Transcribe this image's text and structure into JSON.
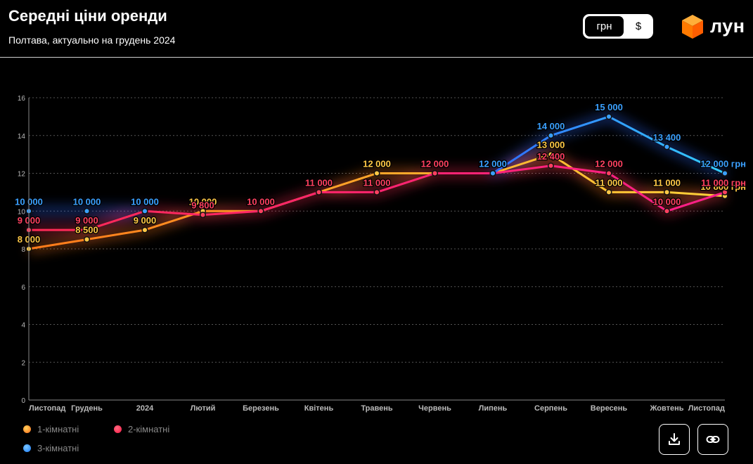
{
  "header": {
    "title": "Середні ціни оренди",
    "subtitle": "Полтава, актуально на грудень 2024"
  },
  "currency_toggle": {
    "active": "грн",
    "inactive": "$"
  },
  "logo": {
    "icon": "cube-logo-icon",
    "text": "лун"
  },
  "colors": {
    "one_room": "#ff8c2a",
    "two_room": "#ff2a55",
    "three_room": "#3a9fff",
    "grid": "#555555",
    "axis_text": "#bbbbbb"
  },
  "legend": [
    {
      "label": "1-кімнатні",
      "color": "#ff8c2a"
    },
    {
      "label": "2-кімнатні",
      "color": "#ff2a55"
    },
    {
      "label": "3-кімнатні",
      "color": "#3a9fff"
    }
  ],
  "actions": {
    "download": "download-icon",
    "link": "link-icon"
  },
  "chart_data": {
    "type": "line",
    "categories": [
      "Листопад",
      "Грудень",
      "2024",
      "Лютий",
      "Березень",
      "Квітень",
      "Травень",
      "Червень",
      "Липень",
      "Серпень",
      "Вересень",
      "Жовтень",
      "Листопад"
    ],
    "yticks": [
      "0",
      "2",
      "4",
      "6",
      "8",
      "10",
      "12",
      "14",
      "16"
    ],
    "ylim": [
      0,
      16
    ],
    "grid": true,
    "legend_position": "bottom-left",
    "unit_suffix": "грн",
    "series": [
      {
        "name": "1-кімнатні",
        "values": [
          8000,
          8500,
          9000,
          10000,
          10000,
          11000,
          12000,
          12000,
          12000,
          13000,
          11000,
          11000,
          10800
        ],
        "labels": [
          "8 000",
          "8 500",
          "9 000",
          "10 000",
          "10 000",
          "11 000",
          "12 000",
          "12 000",
          "12 000",
          "13 000",
          "11 000",
          "11 000",
          "10 800 грн"
        ]
      },
      {
        "name": "2-кімнатні",
        "values": [
          9000,
          9000,
          10000,
          9800,
          10000,
          11000,
          11000,
          12000,
          12000,
          12400,
          12000,
          10000,
          11000
        ],
        "labels": [
          "9 000",
          "9 000",
          "10 000",
          "9 800",
          "10 000",
          "11 000",
          "11 000",
          "12 000",
          "12 000",
          "12 400",
          "12 000",
          "10 000",
          "11 000 грн"
        ]
      },
      {
        "name": "3-кімнатні",
        "values": [
          10000,
          10000,
          10000,
          null,
          null,
          null,
          null,
          null,
          12000,
          14000,
          15000,
          13400,
          12000
        ],
        "labels": [
          "10 000",
          "10 000",
          "10 000",
          "",
          "",
          "",
          "",
          "",
          "12 000",
          "14 000",
          "15 000",
          "13 400",
          "12 000 грн"
        ]
      }
    ]
  }
}
